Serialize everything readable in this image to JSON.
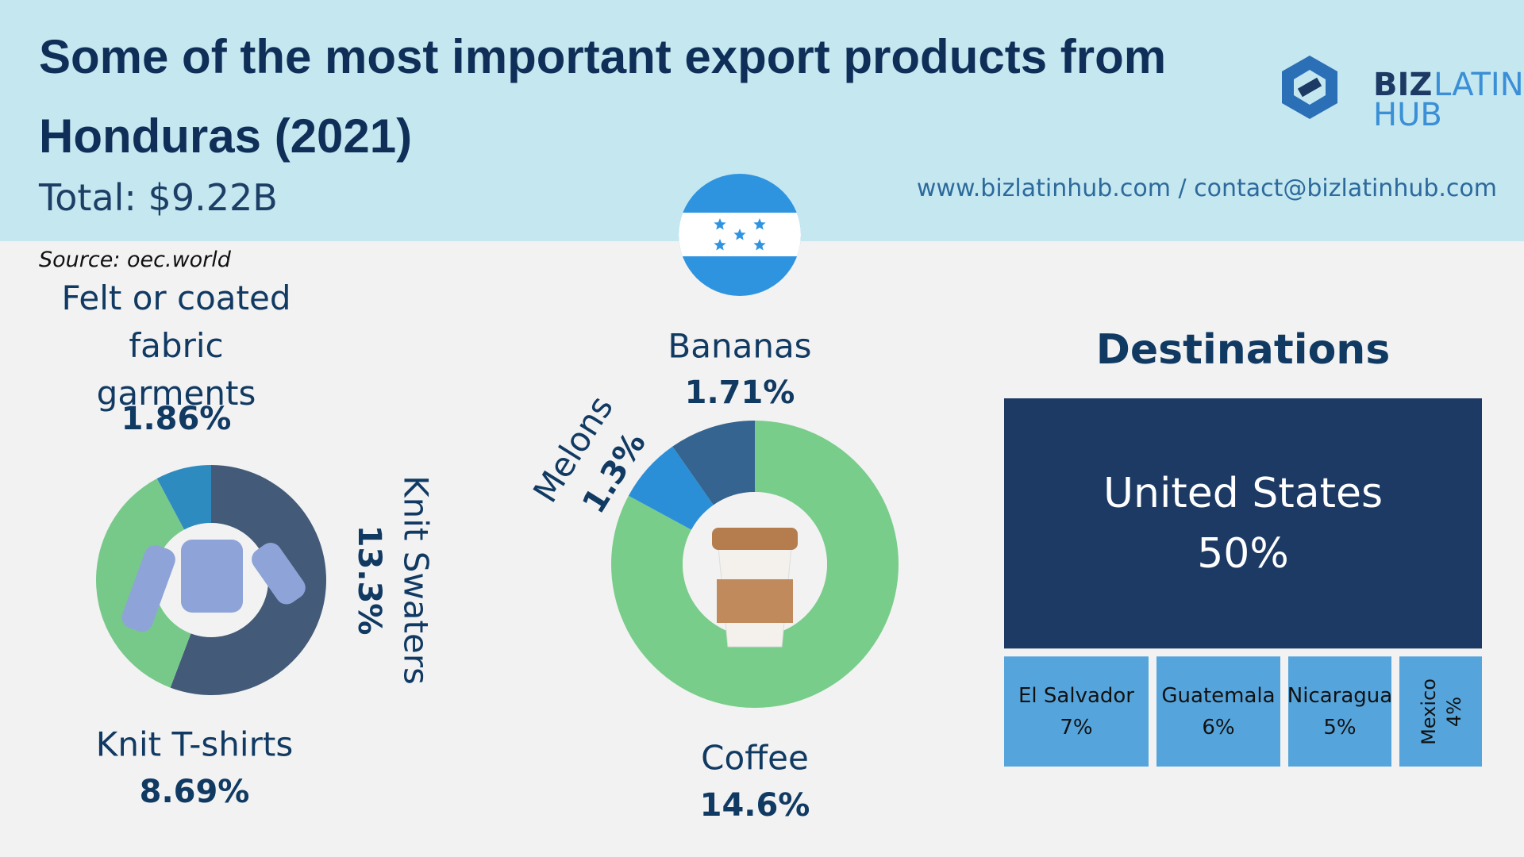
{
  "header": {
    "title": "Some of the most important export products from Honduras (2021)",
    "subtitle": "Total: $9.22B",
    "source": "Source: oec.world",
    "contact": "www.bizlatinhub.com / contact@bizlatinhub.com",
    "logo": [
      "BIZ",
      "LATIN",
      "HUB"
    ]
  },
  "chart_data": [
    {
      "type": "donut",
      "categories": [
        "Knit Swaters",
        "Knit T-shirts",
        "Felt or coated fabric garments"
      ],
      "values": [
        13.3,
        8.69,
        1.86
      ],
      "value_labels": [
        "13.3%",
        "8.69%",
        "1.86%"
      ],
      "colors": [
        "#435a78",
        "#77c98a",
        "#2e8bc0"
      ]
    },
    {
      "type": "donut",
      "categories": [
        "Coffee",
        "Melons",
        "Bananas"
      ],
      "values": [
        14.6,
        1.3,
        1.71
      ],
      "value_labels": [
        "14.6%",
        "1.3%",
        "1.71%"
      ],
      "colors": [
        "#79cd8a",
        "#2b8fd8",
        "#34648f"
      ]
    },
    {
      "type": "treemap",
      "title": "Destinations",
      "categories": [
        "United States",
        "El Salvador",
        "Guatemala",
        "Nicaragua",
        "Mexico"
      ],
      "values": [
        50,
        7,
        6,
        5,
        4
      ],
      "value_labels": [
        "50%",
        "7%",
        "6%",
        "5%",
        "4%"
      ],
      "colors": [
        "#1c3a64",
        "#55a5dc"
      ]
    }
  ]
}
